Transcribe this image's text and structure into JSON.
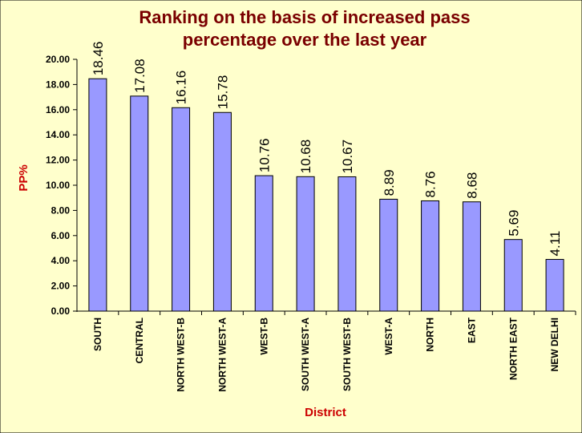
{
  "chart_data": {
    "type": "bar",
    "title": "Ranking on the basis of increased pass percentage over the last year",
    "title_lines": [
      "Ranking on the basis of increased pass",
      "percentage over the last year"
    ],
    "xlabel": "District",
    "ylabel": "PP%",
    "ylim": [
      0,
      20
    ],
    "yticks": [
      "0.00",
      "2.00",
      "4.00",
      "6.00",
      "8.00",
      "10.00",
      "12.00",
      "14.00",
      "16.00",
      "18.00",
      "20.00"
    ],
    "categories": [
      "SOUTH",
      "CENTRAL",
      "NORTH WEST-B",
      "NORTH WEST-A",
      "WEST-B",
      "SOUTH WEST-A",
      "SOUTH WEST-B",
      "WEST-A",
      "NORTH",
      "EAST",
      "NORTH EAST",
      "NEW DELHI"
    ],
    "values": [
      18.46,
      17.08,
      16.16,
      15.78,
      10.76,
      10.68,
      10.67,
      8.89,
      8.76,
      8.68,
      5.69,
      4.11
    ],
    "data_labels": [
      "18.46",
      "17.08",
      "16.16",
      "15.78",
      "10.76",
      "10.68",
      "10.67",
      "8.89",
      "8.76",
      "8.68",
      "5.69",
      "4.11"
    ],
    "grid": false,
    "legend": "none",
    "colors": {
      "background": "#ffffcc",
      "bar_fill": "#9999ff",
      "bar_stroke": "#000000",
      "title": "#7a0000",
      "axis_title": "#cc0000"
    }
  }
}
